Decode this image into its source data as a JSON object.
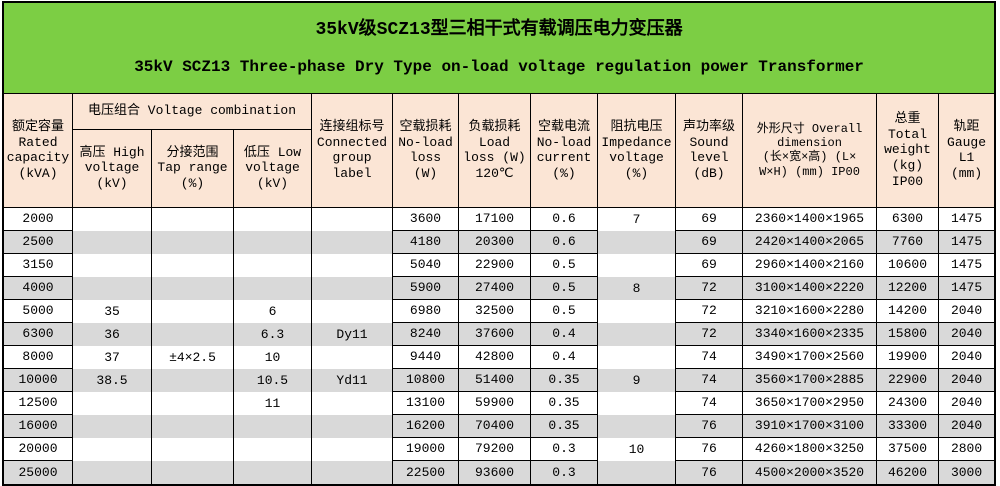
{
  "title": {
    "zh": "35kV级SCZ13型三相干式有载调压电力变压器",
    "en": "35kV SCZ13 Three-phase Dry Type on-load voltage regulation power Transformer"
  },
  "colors": {
    "title_bg": "#7CCE44",
    "header_bg": "#FBE5D5",
    "row_stripe": "#D9D9D9",
    "row_plain": "#FFFFFF",
    "border": "#000000"
  },
  "headers": {
    "rated_capacity": "额定容量\nRated\ncapacity\n(kVA)",
    "voltage_combination": "电压组合 Voltage combination",
    "high_voltage": "高压 High\nvoltage\n(kV)",
    "tap_range": "分接范围\nTap range\n(%)",
    "low_voltage": "低压 Low\nvoltage\n(kV)",
    "connected_group": "连接组标号\nConnected\ngroup\nlabel",
    "no_load_loss": "空载损耗\nNo-load\nloss\n(W)",
    "load_loss": "负载损耗\nLoad\nloss (W)\n120℃",
    "no_load_current": "空载电流\nNo-load\ncurrent\n(%)",
    "impedance_voltage": "阻抗电压\nImpedance\nvoltage\n(%)",
    "sound_level": "声功率级\nSound\nlevel\n(dB)",
    "overall_dimension": "外形尺寸 Overall\ndimension\n(长×宽×高) (L×\nW×H) (mm) IP00",
    "total_weight": "总重\nTotal\nweight\n(kg)\nIP00",
    "gauge": "轨距\nGauge\nL1\n(mm)"
  },
  "table": {
    "col_keys": [
      "capacity",
      "high-voltage",
      "tap-range",
      "low-voltage",
      "connection",
      "no-load-loss",
      "load-loss",
      "no-load-current",
      "impedance-voltage",
      "sound-level",
      "dimension",
      "weight",
      "gauge"
    ],
    "rows": [
      [
        "2000",
        "",
        "",
        "",
        "",
        "3600",
        "17100",
        "0.6",
        "7",
        "69",
        "2360×1400×1965",
        "6300",
        "1475"
      ],
      [
        "2500",
        "",
        "",
        "",
        "",
        "4180",
        "20300",
        "0.6",
        "",
        "69",
        "2420×1400×2065",
        "7760",
        "1475"
      ],
      [
        "3150",
        "",
        "",
        "",
        "",
        "5040",
        "22900",
        "0.5",
        "",
        "69",
        "2960×1400×2160",
        "10600",
        "1475"
      ],
      [
        "4000",
        "",
        "",
        "",
        "",
        "5900",
        "27400",
        "0.5",
        "8",
        "72",
        "3100×1400×2220",
        "12200",
        "1475"
      ],
      [
        "5000",
        "35",
        "",
        "6",
        "",
        "6980",
        "32500",
        "0.5",
        "",
        "72",
        "3210×1600×2280",
        "14200",
        "2040"
      ],
      [
        "6300",
        "36",
        "",
        "6.3",
        "Dy11",
        "8240",
        "37600",
        "0.4",
        "",
        "72",
        "3340×1600×2335",
        "15800",
        "2040"
      ],
      [
        "8000",
        "37",
        "±4×2.5",
        "10",
        "",
        "9440",
        "42800",
        "0.4",
        "",
        "74",
        "3490×1700×2560",
        "19900",
        "2040"
      ],
      [
        "10000",
        "38.5",
        "",
        "10.5",
        "Yd11",
        "10800",
        "51400",
        "0.35",
        "9",
        "74",
        "3560×1700×2885",
        "22900",
        "2040"
      ],
      [
        "12500",
        "",
        "",
        "11",
        "",
        "13100",
        "59900",
        "0.35",
        "",
        "74",
        "3650×1700×2950",
        "24300",
        "2040"
      ],
      [
        "16000",
        "",
        "",
        "",
        "",
        "16200",
        "70400",
        "0.35",
        "",
        "76",
        "3910×1700×3100",
        "33300",
        "2040"
      ],
      [
        "20000",
        "",
        "",
        "",
        "",
        "19000",
        "79200",
        "0.3",
        "10",
        "76",
        "4260×1800×3250",
        "37500",
        "2800"
      ],
      [
        "25000",
        "",
        "",
        "",
        "",
        "22500",
        "93600",
        "0.3",
        "",
        "76",
        "4500×2000×3520",
        "46200",
        "3000"
      ]
    ]
  }
}
